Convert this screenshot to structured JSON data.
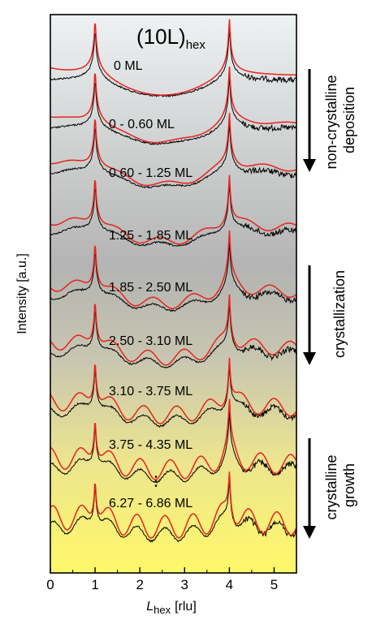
{
  "chart_data": {
    "type": "line",
    "title": "(10L)",
    "title_subscript": "hex",
    "xlabel": "L",
    "xlabel_subscript": "hex",
    "xlabel_unit": "[rlu]",
    "ylabel": "Intensity [a.u.]",
    "xlim": [
      0,
      5.5
    ],
    "xticks": [
      "0",
      "1",
      "2",
      "3",
      "4",
      "5"
    ],
    "background_gradient": [
      "#e9eef0",
      "#a7a8a7",
      "#fff98a"
    ],
    "colors": {
      "measured": "#000000",
      "fit": "#e8231d"
    },
    "curves": [
      {
        "label": "0 ML"
      },
      {
        "label": "0 - 0.60 ML"
      },
      {
        "label": "0.60 - 1.25 ML"
      },
      {
        "label": "1.25 - 1.85 ML"
      },
      {
        "label": "1.85 - 2.50 ML"
      },
      {
        "label": "2.50 - 3.10 ML"
      },
      {
        "label": "3.10 - 3.75 ML"
      },
      {
        "label": "3.75 - 4.35 ML"
      },
      {
        "label": "6.27 - 6.86 ML"
      }
    ],
    "ellipsis_label": "⋮",
    "annotations": [
      {
        "text": [
          "non-crystalline",
          "deposition"
        ]
      },
      {
        "text": [
          "crystallization"
        ]
      },
      {
        "text": [
          "crystalline",
          "growth"
        ]
      }
    ]
  }
}
